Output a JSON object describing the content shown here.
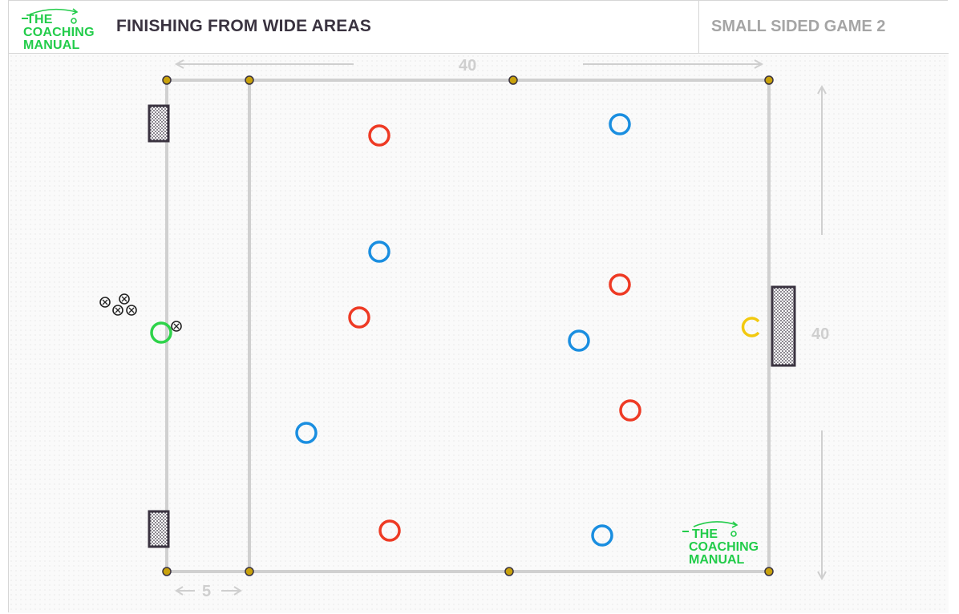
{
  "header": {
    "logo": {
      "line1": "THE",
      "line2": "COACHING",
      "line3": "MANUAL"
    },
    "title": "FINISHING FROM WIDE AREAS",
    "subtitle": "SMALL SIDED GAME 2"
  },
  "dimensions": {
    "width_label": "40",
    "height_label": "40",
    "zone_label": "5"
  },
  "watermark": {
    "line1": "THE",
    "line2": "COACHING",
    "line3": "MANUAL"
  },
  "colors": {
    "red_team": "#ee3a24",
    "blue_team": "#1a8ee0",
    "server": "#2ed34a",
    "goalkeeper": "#f2c90f",
    "cone": "#c9a20c",
    "line": "#d0d0d0",
    "goal": "#3a3340",
    "brand": "#22cc4a"
  },
  "icons": {
    "goal": "goal-net-icon",
    "ball": "football-icon",
    "cone": "cone-marker-icon",
    "player": "player-ring-icon"
  }
}
